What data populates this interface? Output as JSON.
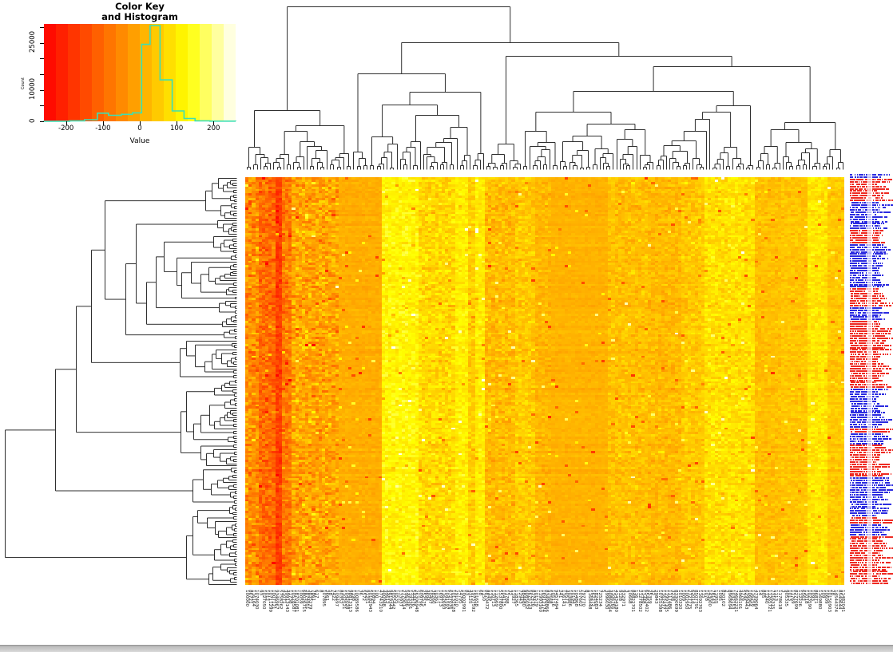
{
  "chart_data": {
    "type": "heatmap",
    "title": "Color Key and Histogram",
    "color_key": {
      "title_line1": "Color Key",
      "title_line2": "and Histogram",
      "xlabel": "Value",
      "ylabel": "Count",
      "x_ticks": [
        -200,
        -100,
        0,
        100,
        200
      ],
      "x_tick_labels": [
        "-200",
        "-100",
        "0",
        "100",
        "200"
      ],
      "x_range": [
        -260,
        260
      ],
      "y_tick_labels": [
        "0",
        "10000",
        "25000"
      ],
      "y_labeled_ticks": [
        0,
        10000,
        25000
      ],
      "y_minor_ticks": [
        0,
        5000,
        10000,
        15000,
        20000,
        25000,
        30000
      ],
      "y_range": [
        0,
        31000
      ],
      "palette_name": "heat-colors (red to orange to yellow to white)",
      "palette_bands": 16
    },
    "histogram": {
      "line_color": "#3CDFB4",
      "bin_edges": [
        -260,
        -190,
        -150,
        -115,
        -85,
        -50,
        -20,
        5,
        28,
        55,
        88,
        120,
        150,
        190,
        260
      ],
      "counts": [
        30,
        150,
        500,
        2600,
        1900,
        2200,
        2700,
        24500,
        30500,
        13200,
        3300,
        900,
        150,
        40
      ]
    },
    "heatmap": {
      "nrows": 176,
      "ncols": 180,
      "value_range": [
        -256,
        256
      ],
      "seed": 42,
      "row_jitter": 6,
      "outlier_rate": 0.018,
      "column_bands": [
        {
          "cols": [
            0,
            3
          ],
          "value": -40,
          "sd": 45
        },
        {
          "cols": [
            4,
            8
          ],
          "value": -95,
          "sd": 35
        },
        {
          "cols": [
            9,
            10
          ],
          "value": -165,
          "sd": 25
        },
        {
          "cols": [
            11,
            13
          ],
          "value": -75,
          "sd": 35
        },
        {
          "cols": [
            14,
            27
          ],
          "value": -8,
          "sd": 42
        },
        {
          "cols": [
            28,
            40
          ],
          "value": 6,
          "sd": 10
        },
        {
          "cols": [
            41,
            51
          ],
          "value": 118,
          "sd": 22
        },
        {
          "cols": [
            52,
            62
          ],
          "value": 72,
          "sd": 30
        },
        {
          "cols": [
            63,
            66
          ],
          "value": 106,
          "sd": 20
        },
        {
          "cols": [
            67,
            68
          ],
          "value": 55,
          "sd": 25
        },
        {
          "cols": [
            69,
            71
          ],
          "value": 100,
          "sd": 20
        },
        {
          "cols": [
            72,
            80
          ],
          "value": 28,
          "sd": 26
        },
        {
          "cols": [
            81,
            86
          ],
          "value": 50,
          "sd": 24
        },
        {
          "cols": [
            87,
            91
          ],
          "value": 20,
          "sd": 18
        },
        {
          "cols": [
            92,
            108
          ],
          "value": 13,
          "sd": 8
        },
        {
          "cols": [
            109,
            120
          ],
          "value": 36,
          "sd": 22
        },
        {
          "cols": [
            121,
            130
          ],
          "value": 25,
          "sd": 20
        },
        {
          "cols": [
            131,
            137
          ],
          "value": 46,
          "sd": 22
        },
        {
          "cols": [
            138,
            152
          ],
          "value": 84,
          "sd": 26
        },
        {
          "cols": [
            153,
            160
          ],
          "value": 32,
          "sd": 16
        },
        {
          "cols": [
            161,
            168
          ],
          "value": 42,
          "sd": 16
        },
        {
          "cols": [
            169,
            174
          ],
          "value": 92,
          "sd": 20
        },
        {
          "cols": [
            175,
            179
          ],
          "value": 48,
          "sd": 16
        }
      ]
    },
    "dendrograms": {
      "line_color": "#2f2f2f",
      "top": {
        "leaves": 180,
        "root_split_fraction": 0.18,
        "seed": 11
      },
      "left": {
        "leaves": 176,
        "root_split_fraction": 0.8,
        "seed": 23
      }
    },
    "row_label_strip": {
      "note": "tiny row label text colored red or blue, illegible at this scale",
      "rows": 176,
      "red": "#EE2A22",
      "blue": "#2B2BE0",
      "blue_run_probability": 0.54,
      "seed": 7
    },
    "column_labels": {
      "note": "~180 rotated numeric probe IDs, heavily overlapping and illegible",
      "count": 180,
      "seed": 13
    }
  },
  "window": {
    "bottom_bar_present": true
  }
}
